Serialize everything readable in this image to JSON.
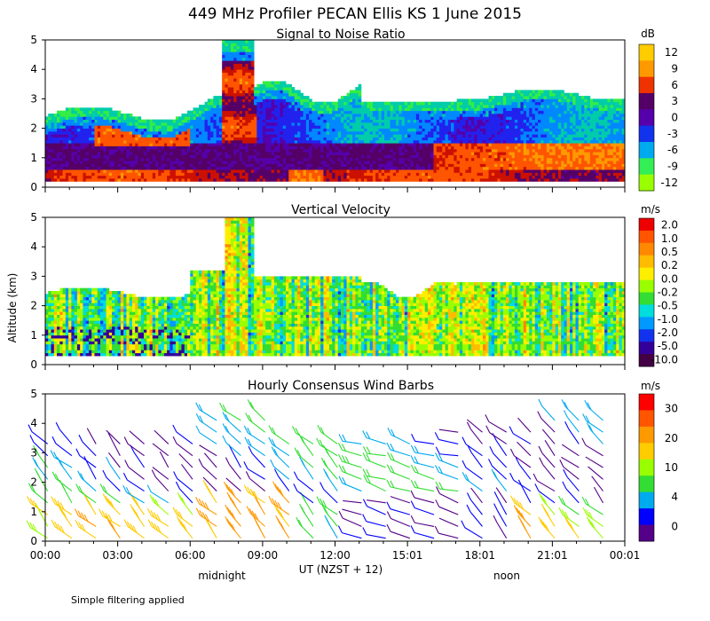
{
  "title": "449 MHz Profiler PECAN Ellis KS  1 June 2015",
  "ylabel": "Altitude (km)",
  "xlabel": "UT  (NZST + 12)",
  "x_ticks": [
    "00:00",
    "03:00",
    "06:00",
    "09:00",
    "12:00",
    "15:01",
    "18:01",
    "21:01",
    "00:01"
  ],
  "local_marks": [
    "midnight",
    "noon"
  ],
  "footnote": "Simple filtering applied",
  "colors": {
    "snr": [
      "#99ff00",
      "#33ee44",
      "#00ccaa",
      "#0088ff",
      "#2222ee",
      "#5500aa",
      "#550066",
      "#cc1100",
      "#ff5500",
      "#ff9900",
      "#ffcc00"
    ]
  },
  "chart_data": [
    {
      "type": "heatmap",
      "title": "Signal to Noise Ratio",
      "unit": "dB",
      "ylim": [
        0,
        5
      ],
      "yticks": [
        "0",
        "1",
        "2",
        "3",
        "4",
        "5"
      ],
      "colorbar_ticks": [
        "12",
        "9",
        "6",
        "3",
        "0",
        "-3",
        "-6",
        "-9",
        "-12"
      ],
      "colorbar_colors": [
        "#ffcc00",
        "#ff9900",
        "#ee3300",
        "#550066",
        "#5500aa",
        "#1133ee",
        "#00aaee",
        "#33ee55",
        "#99ff00"
      ]
    },
    {
      "type": "heatmap",
      "title": "Vertical Velocity",
      "unit": "m/s",
      "ylim": [
        0,
        5
      ],
      "yticks": [
        "0",
        "1",
        "2",
        "3",
        "4",
        "5"
      ],
      "colorbar_ticks": [
        "2.0",
        "1.0",
        "0.5",
        "0.2",
        "0.0",
        "-0.2",
        "-0.5",
        "-1.0",
        "-2.0",
        "-5.0",
        "-10.0"
      ],
      "colorbar_colors": [
        "#ee0000",
        "#ff5500",
        "#ff8800",
        "#ffbb00",
        "#ffee00",
        "#99ff00",
        "#33dd33",
        "#00dddd",
        "#0099ff",
        "#1133ee",
        "#330099",
        "#440044"
      ]
    },
    {
      "type": "wind_barbs",
      "title": "Hourly Consensus Wind Barbs",
      "unit": "m/s",
      "ylim": [
        0,
        5
      ],
      "yticks": [
        "0",
        "1",
        "2",
        "3",
        "4",
        "5"
      ],
      "colorbar_ticks": [
        "30",
        "20",
        "10",
        "4",
        "0"
      ],
      "colorbar_colors": [
        "#ff0000",
        "#ff5500",
        "#ff9900",
        "#ffcc00",
        "#99ff00",
        "#33dd33",
        "#00aaee",
        "#0000ff",
        "#550088"
      ]
    }
  ]
}
